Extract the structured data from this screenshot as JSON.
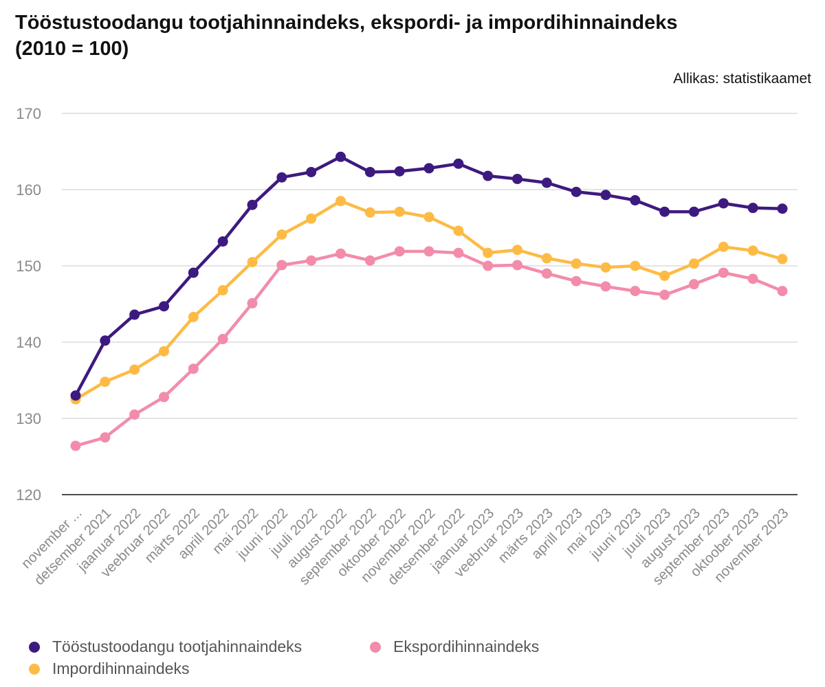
{
  "header": {
    "title_line1": "Tööstustoodangu tootjahinnaindeks, ekspordi- ja impordihinnaindeks",
    "title_line2": "(2010 = 100)",
    "source": "Allikas: statistikaamet"
  },
  "chart_data": {
    "type": "line",
    "title": "Tööstustoodangu tootjahinnaindeks, ekspordi- ja impordihinnaindeks (2010 = 100)",
    "xlabel": "",
    "ylabel": "",
    "ylim": [
      120,
      170
    ],
    "yticks": [
      120,
      130,
      140,
      150,
      160,
      170
    ],
    "grid": true,
    "legend_position": "bottom-left",
    "categories": [
      "november ...",
      "detsember 2021",
      "jaanuar 2022",
      "veebruar 2022",
      "märts 2022",
      "aprill 2022",
      "mai 2022",
      "juuni 2022",
      "juuli 2022",
      "august 2022",
      "september 2022",
      "oktoober 2022",
      "november 2022",
      "detsember 2022",
      "jaanuar 2023",
      "veebruar 2023",
      "märts 2023",
      "aprill 2023",
      "mai 2023",
      "juuni 2023",
      "juuli 2023",
      "august 2023",
      "september 2023",
      "oktoober 2023",
      "november 2023"
    ],
    "series": [
      {
        "name": "Tööstustoodangu tootjahinnaindeks",
        "color": "#3d1a7f",
        "values": [
          133.0,
          140.2,
          143.6,
          144.7,
          149.1,
          153.2,
          158.0,
          161.6,
          162.3,
          164.3,
          162.3,
          162.4,
          162.8,
          163.4,
          161.8,
          161.4,
          160.9,
          159.7,
          159.3,
          158.6,
          157.1,
          157.1,
          158.2,
          157.6,
          157.5
        ]
      },
      {
        "name": "Impordihinnaindeks",
        "color": "#fdbb45",
        "values": [
          132.5,
          134.8,
          136.4,
          138.8,
          143.3,
          146.8,
          150.5,
          154.1,
          156.2,
          158.5,
          157.0,
          157.1,
          156.4,
          154.6,
          151.7,
          152.1,
          151.0,
          150.3,
          149.8,
          150.0,
          148.7,
          150.3,
          152.5,
          152.0,
          150.9
        ]
      },
      {
        "name": "Ekspordihinnaindeks",
        "color": "#f28caa",
        "values": [
          126.4,
          127.5,
          130.5,
          132.8,
          136.5,
          140.4,
          145.1,
          150.1,
          150.7,
          151.6,
          150.7,
          151.9,
          151.9,
          151.7,
          150.0,
          150.1,
          149.0,
          148.0,
          147.3,
          146.7,
          146.2,
          147.6,
          149.1,
          148.3,
          146.7
        ]
      }
    ]
  }
}
